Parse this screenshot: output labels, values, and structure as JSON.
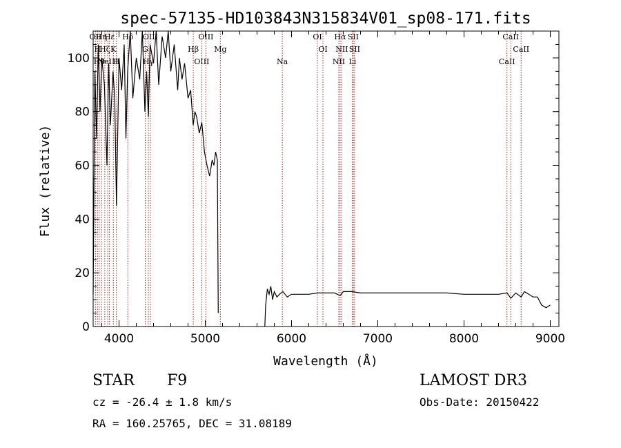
{
  "chart_data": {
    "type": "line",
    "title": "spec-57135-HD103843N315834V01_sp08-171.fits",
    "xlabel": "Wavelength (Å)",
    "ylabel": "Flux (relative)",
    "xlim": [
      3700,
      9100
    ],
    "ylim": [
      0,
      110
    ],
    "xticks": [
      4000,
      5000,
      6000,
      7000,
      8000,
      9000
    ],
    "yticks": [
      0,
      20,
      40,
      60,
      80,
      100
    ],
    "grid": false,
    "series": [
      {
        "color": "#000000",
        "segments": [
          {
            "x": [
              3700,
              3720,
              3740,
              3760,
              3780,
              3800,
              3830,
              3860,
              3880,
              3900,
              3930,
              3950,
              3970,
              4000,
              4030,
              4060,
              4080,
              4100,
              4130,
              4160,
              4200,
              4240,
              4270,
              4300,
              4320,
              4340,
              4360,
              4400,
              4430,
              4460,
              4500,
              4540,
              4570,
              4600,
              4640,
              4680,
              4700,
              4730,
              4760,
              4800,
              4830,
              4860,
              4880,
              4900,
              4930,
              4960,
              4990,
              5020,
              5050,
              5080,
              5100,
              5120,
              5140,
              5150
            ],
            "y": [
              12,
              95,
              70,
              105,
              80,
              100,
              90,
              60,
              98,
              75,
              95,
              85,
              45,
              100,
              88,
              105,
              70,
              95,
              110,
              85,
              100,
              92,
              110,
              80,
              95,
              78,
              105,
              98,
              110,
              90,
              108,
              100,
              112,
              95,
              105,
              88,
              100,
              92,
              98,
              85,
              88,
              75,
              80,
              78,
              72,
              76,
              65,
              60,
              56,
              62,
              60,
              65,
              62,
              5
            ]
          },
          {
            "x": [
              5690,
              5700,
              5720,
              5740,
              5760,
              5780,
              5800,
              5830,
              5860,
              5900,
              5950,
              6000,
              6100,
              6200,
              6300,
              6400,
              6500,
              6563,
              6600,
              6700,
              6800,
              6900,
              7000,
              7200,
              7400,
              7600,
              7800,
              8000,
              8200,
              8400,
              8500,
              8542,
              8600,
              8662,
              8700,
              8750,
              8800,
              8850,
              8900,
              8950,
              9000
            ],
            "y": [
              0,
              8,
              14,
              12,
              15,
              10,
              13,
              11,
              12,
              13,
              11,
              12,
              12,
              12,
              12.5,
              12.5,
              12.5,
              11.5,
              13,
              13,
              12.5,
              12.5,
              12.5,
              12.5,
              12.5,
              12.5,
              12.5,
              12,
              12,
              12,
              12.5,
              10.5,
              12.5,
              11,
              13,
              12,
              11,
              11,
              8,
              7,
              8
            ]
          }
        ]
      }
    ],
    "line_markers": [
      {
        "x": 3727,
        "label": "OII"
      },
      {
        "x": 3750,
        "label": "H"
      },
      {
        "x": 3770,
        "label": "Hθ"
      },
      {
        "x": 3797,
        "label": "Hη"
      },
      {
        "x": 3835,
        "label": "Hζ"
      },
      {
        "x": 3869,
        "label": "NeIII"
      },
      {
        "x": 3889,
        "label": "Hε"
      },
      {
        "x": 3934,
        "label": "K"
      },
      {
        "x": 3969,
        "label": "H"
      },
      {
        "x": 4102,
        "label": "Hδ"
      },
      {
        "x": 4304,
        "label": "G"
      },
      {
        "x": 4340,
        "label": "Hγ"
      },
      {
        "x": 4363,
        "label": "OIII"
      },
      {
        "x": 4861,
        "label": "Hβ"
      },
      {
        "x": 4959,
        "label": "OIII"
      },
      {
        "x": 5007,
        "label": "OIII"
      },
      {
        "x": 5175,
        "label": "Mg"
      },
      {
        "x": 5893,
        "label": "Na"
      },
      {
        "x": 6300,
        "label": "OI"
      },
      {
        "x": 6364,
        "label": "OI"
      },
      {
        "x": 6548,
        "label": "NII"
      },
      {
        "x": 6563,
        "label": "Hα"
      },
      {
        "x": 6583,
        "label": "NII"
      },
      {
        "x": 6707,
        "label": "Li"
      },
      {
        "x": 6716,
        "label": "SII"
      },
      {
        "x": 6731,
        "label": "SII"
      },
      {
        "x": 8498,
        "label": "CaII"
      },
      {
        "x": 8542,
        "label": "CaII"
      },
      {
        "x": 8662,
        "label": "CaII"
      }
    ],
    "marker_color": "#b22222"
  },
  "info": {
    "class": "STAR",
    "subclass": "F9",
    "survey": "LAMOST DR3",
    "cz": "cz = -26.4 ± 1.8 km/s",
    "obs_date": "Obs-Date: 20150422",
    "radec": "RA = 160.25765, DEC =  31.08189"
  }
}
